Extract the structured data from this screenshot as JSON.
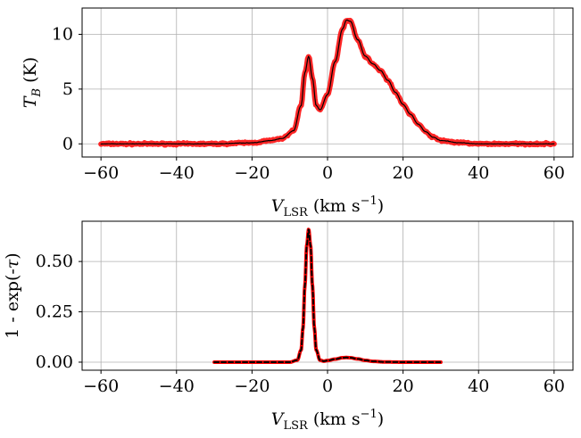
{
  "chart_data": [
    {
      "type": "line",
      "xlabel": "V_LSR (km s^-1)",
      "ylabel": "T_B (K)",
      "xlim": [
        -65,
        65
      ],
      "ylim": [
        -1.2,
        12.4
      ],
      "xticks": [
        -60,
        -40,
        -20,
        0,
        20,
        40,
        60
      ],
      "xtick_labels": [
        "−60",
        "−40",
        "−20",
        "0",
        "20",
        "40",
        "60"
      ],
      "yticks": [
        0,
        5,
        10
      ],
      "ytick_labels": [
        "0",
        "5",
        "10"
      ],
      "grid": true,
      "series": [
        {
          "color": "#ff0000",
          "style": "thick-noisy-band",
          "x": [
            -60,
            -50,
            -40,
            -30,
            -20,
            -15,
            -12,
            -9,
            -7,
            -6,
            -5,
            -4,
            -3,
            -2,
            0,
            2,
            4,
            5,
            6,
            8,
            10,
            12,
            14,
            16,
            18,
            20,
            22,
            24,
            26,
            28,
            30,
            35,
            40,
            45,
            50,
            55,
            60
          ],
          "y": [
            0,
            0,
            0,
            0,
            0.1,
            0.3,
            0.5,
            1.2,
            3.5,
            6.5,
            8.0,
            6.0,
            3.5,
            3.1,
            4.5,
            7.5,
            10.5,
            11.3,
            11.2,
            9.5,
            8.0,
            7.3,
            6.7,
            5.8,
            4.7,
            3.6,
            2.7,
            1.8,
            1.1,
            0.6,
            0.3,
            0.1,
            0,
            0,
            0,
            0,
            0
          ]
        },
        {
          "color": "#000000",
          "style": "thin-noisy-line",
          "x": [
            -60,
            -50,
            -40,
            -30,
            -20,
            -15,
            -12,
            -9,
            -7,
            -6,
            -5,
            -4,
            -3,
            -2,
            0,
            2,
            4,
            5,
            6,
            8,
            10,
            12,
            14,
            16,
            18,
            20,
            22,
            24,
            26,
            28,
            30,
            35,
            40,
            45,
            50,
            55,
            60
          ],
          "y": [
            0,
            0,
            0,
            0,
            0.1,
            0.3,
            0.5,
            1.2,
            3.5,
            6.5,
            8.0,
            6.0,
            3.5,
            3.1,
            4.5,
            7.5,
            10.5,
            11.3,
            11.2,
            9.5,
            8.0,
            7.3,
            6.7,
            5.8,
            4.7,
            3.6,
            2.7,
            1.8,
            1.1,
            0.6,
            0.3,
            0.1,
            0,
            0,
            0,
            0,
            0
          ]
        }
      ]
    },
    {
      "type": "line",
      "xlabel": "V_LSR (km s^-1)",
      "ylabel": "1 - exp(-τ)",
      "xlim": [
        -65,
        65
      ],
      "ylim": [
        -0.04,
        0.7
      ],
      "xticks": [
        -60,
        -40,
        -20,
        0,
        20,
        40,
        60
      ],
      "xtick_labels": [
        "−60",
        "−40",
        "−20",
        "0",
        "20",
        "40",
        "60"
      ],
      "yticks": [
        0,
        0.25,
        0.5
      ],
      "ytick_labels": [
        "0.00",
        "0.25",
        "0.50"
      ],
      "grid": true,
      "series": [
        {
          "color": "#ff0000",
          "style": "thick-band",
          "x": [
            -30,
            -20,
            -10,
            -8,
            -7,
            -6.5,
            -6,
            -5.5,
            -5,
            -4.5,
            -4,
            -3.5,
            -3,
            -2,
            -1,
            0,
            2,
            4,
            5,
            6,
            8,
            10,
            12,
            15,
            20,
            25,
            30
          ],
          "y": [
            0,
            0,
            0,
            0.01,
            0.06,
            0.17,
            0.38,
            0.58,
            0.66,
            0.58,
            0.38,
            0.17,
            0.06,
            0.01,
            0.005,
            0.008,
            0.015,
            0.022,
            0.023,
            0.022,
            0.016,
            0.009,
            0.004,
            0.001,
            0,
            0,
            0
          ]
        },
        {
          "color": "#000000",
          "style": "dashed",
          "x": [
            -30,
            -20,
            -10,
            -8,
            -7,
            -6.5,
            -6,
            -5.5,
            -5,
            -4.5,
            -4,
            -3.5,
            -3,
            -2,
            -1,
            0,
            2,
            4,
            5,
            6,
            8,
            10,
            12,
            15,
            20,
            25,
            30
          ],
          "y": [
            0,
            0,
            0,
            0.01,
            0.06,
            0.17,
            0.38,
            0.58,
            0.66,
            0.58,
            0.38,
            0.17,
            0.06,
            0.01,
            0.005,
            0.008,
            0.015,
            0.022,
            0.023,
            0.022,
            0.016,
            0.009,
            0.004,
            0.001,
            0,
            0,
            0
          ]
        }
      ]
    }
  ]
}
